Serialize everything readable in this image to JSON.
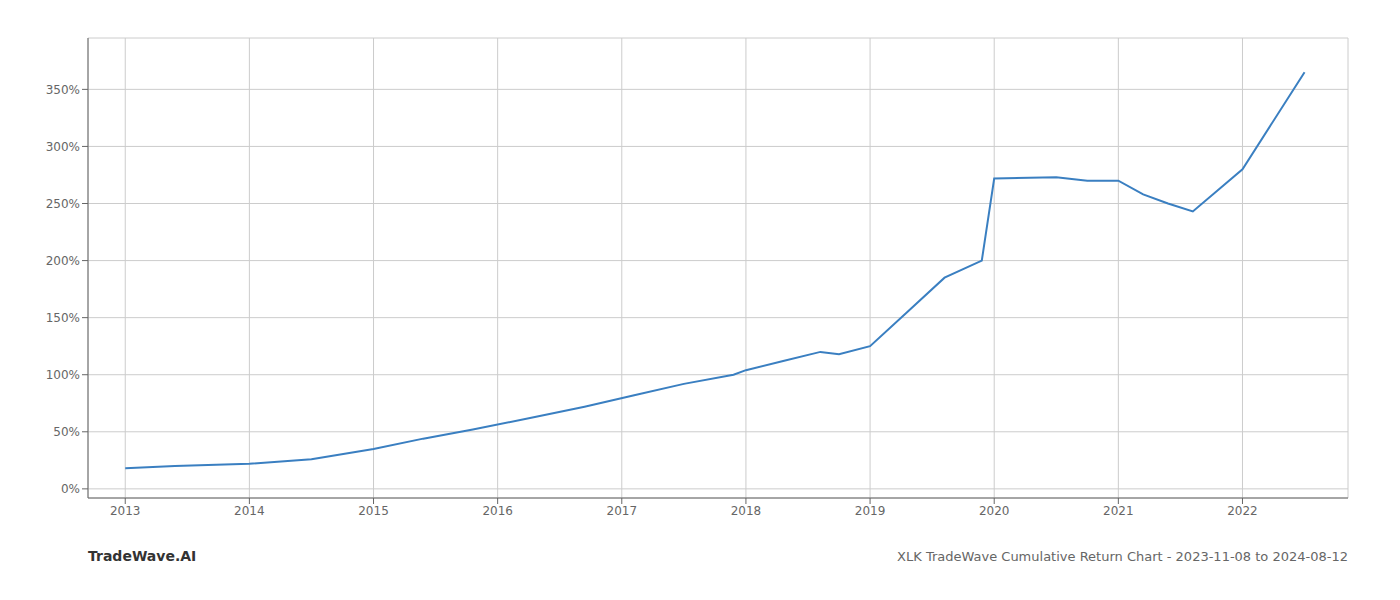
{
  "chart_data": {
    "type": "line",
    "title": "XLK TradeWave Cumulative Return Chart - 2023-11-08 to 2024-08-12",
    "annotations": [
      "TradeWave.AI"
    ],
    "x": [
      2013.0,
      2013.4,
      2014.0,
      2014.5,
      2015.0,
      2015.4,
      2015.8,
      2016.3,
      2016.7,
      2017.1,
      2017.5,
      2017.9,
      2018.0,
      2018.3,
      2018.6,
      2018.75,
      2019.0,
      2019.3,
      2019.6,
      2019.9,
      2020.0,
      2020.5,
      2020.75,
      2021.0,
      2021.2,
      2021.4,
      2021.6,
      2022.0,
      2022.5
    ],
    "values": [
      18,
      20,
      22,
      26,
      35,
      44,
      52,
      63,
      72,
      82,
      92,
      100,
      104,
      112,
      120,
      118,
      125,
      155,
      185,
      200,
      272,
      273,
      270,
      270,
      258,
      250,
      243,
      280,
      365
    ],
    "color": "#3a7fc1",
    "xlim": [
      2012.7,
      2022.85
    ],
    "ylim": [
      -8,
      395
    ],
    "xticks": [
      2013,
      2014,
      2015,
      2016,
      2017,
      2018,
      2019,
      2020,
      2021,
      2022
    ],
    "yticks": [
      {
        "value": 0,
        "label": "0%"
      },
      {
        "value": 50,
        "label": "50%"
      },
      {
        "value": 100,
        "label": "100%"
      },
      {
        "value": 150,
        "label": "150%"
      },
      {
        "value": 200,
        "label": "200%"
      },
      {
        "value": 250,
        "label": "250%"
      },
      {
        "value": 300,
        "label": "300%"
      },
      {
        "value": 350,
        "label": "350%"
      }
    ],
    "grid": true
  }
}
